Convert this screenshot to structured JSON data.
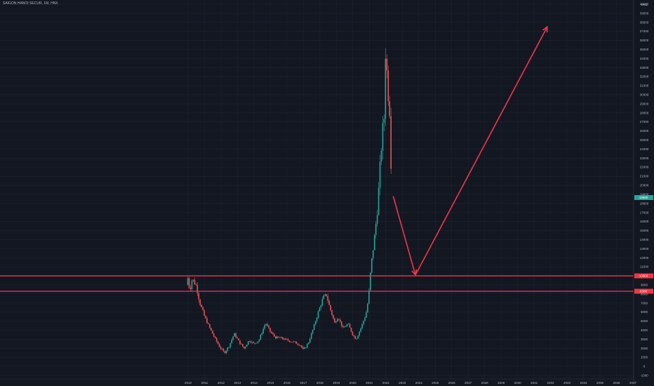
{
  "header": {
    "symbol": "SAIGON HANOI SECUR, 1M, HNX"
  },
  "chart_data": {
    "type": "candlestick",
    "currency": "VND",
    "ylim": [
      -1000,
      40000
    ],
    "y_ticks": [
      -1000,
      0,
      1000,
      2000,
      3000,
      4000,
      5000,
      6000,
      7000,
      8000,
      9000,
      10000,
      11000,
      12000,
      13000,
      14000,
      15000,
      16000,
      17000,
      18000,
      19000,
      20000,
      21000,
      22000,
      23000,
      24000,
      25000,
      26000,
      27000,
      28000,
      29000,
      30000,
      31000,
      32000,
      33000,
      34000,
      35000,
      36000,
      37000,
      38000,
      39000,
      40000
    ],
    "x_ticks": [
      2010,
      2011,
      2012,
      2013,
      2014,
      2015,
      2016,
      2017,
      2018,
      2019,
      2020,
      2021,
      2022,
      2023,
      2024,
      2025,
      2026,
      2027,
      2028,
      2029,
      2030,
      2031,
      2032,
      2033,
      2034,
      2035,
      2036,
      2037
    ],
    "price_path": [
      [
        2009.9,
        9000
      ],
      [
        2010.0,
        9900
      ],
      [
        2010.1,
        8300
      ],
      [
        2010.25,
        9700
      ],
      [
        2010.5,
        8900
      ],
      [
        2010.7,
        7100
      ],
      [
        2011.0,
        5500
      ],
      [
        2011.3,
        4300
      ],
      [
        2011.6,
        3200
      ],
      [
        2011.9,
        2200
      ],
      [
        2012.2,
        1500
      ],
      [
        2012.5,
        2300
      ],
      [
        2012.8,
        3600
      ],
      [
        2013.1,
        2700
      ],
      [
        2013.4,
        2000
      ],
      [
        2013.7,
        2900
      ],
      [
        2014.0,
        2500
      ],
      [
        2014.3,
        2900
      ],
      [
        2014.7,
        4800
      ],
      [
        2015.0,
        3800
      ],
      [
        2015.3,
        3200
      ],
      [
        2015.7,
        3100
      ],
      [
        2016.0,
        2900
      ],
      [
        2016.4,
        2700
      ],
      [
        2016.8,
        2400
      ],
      [
        2017.0,
        1800
      ],
      [
        2017.3,
        2600
      ],
      [
        2017.6,
        4200
      ],
      [
        2017.9,
        6000
      ],
      [
        2018.2,
        7600
      ],
      [
        2018.4,
        7900
      ],
      [
        2018.6,
        6500
      ],
      [
        2018.9,
        4800
      ],
      [
        2019.1,
        5500
      ],
      [
        2019.4,
        4200
      ],
      [
        2019.7,
        4700
      ],
      [
        2020.0,
        3500
      ],
      [
        2020.2,
        3000
      ],
      [
        2020.5,
        4300
      ],
      [
        2020.8,
        5800
      ],
      [
        2020.95,
        7500
      ],
      [
        2021.1,
        11000
      ],
      [
        2021.3,
        14000
      ],
      [
        2021.5,
        17500
      ],
      [
        2021.65,
        22000
      ],
      [
        2021.8,
        26000
      ],
      [
        2021.9,
        27500
      ],
      [
        2021.97,
        35000
      ],
      [
        2022.05,
        33000
      ],
      [
        2022.15,
        30000
      ],
      [
        2022.25,
        28000
      ],
      [
        2022.3,
        24000
      ],
      [
        2022.35,
        19500
      ]
    ],
    "horizontal_levels": [
      {
        "price": 10000,
        "label": "10000"
      },
      {
        "price": 8300,
        "label": "8300"
      }
    ],
    "current_price": {
      "price": 18650,
      "label": "18650"
    },
    "projection_path": [
      {
        "x": 2022.45,
        "y": 18800
      },
      {
        "x": 2023.8,
        "y": 10100
      },
      {
        "x": 2031.8,
        "y": 37500
      }
    ],
    "colors": {
      "up": "#26a69a",
      "down": "#ef5350",
      "line": "#f23645",
      "bg": "#131722",
      "grid": "#1e222d"
    }
  }
}
